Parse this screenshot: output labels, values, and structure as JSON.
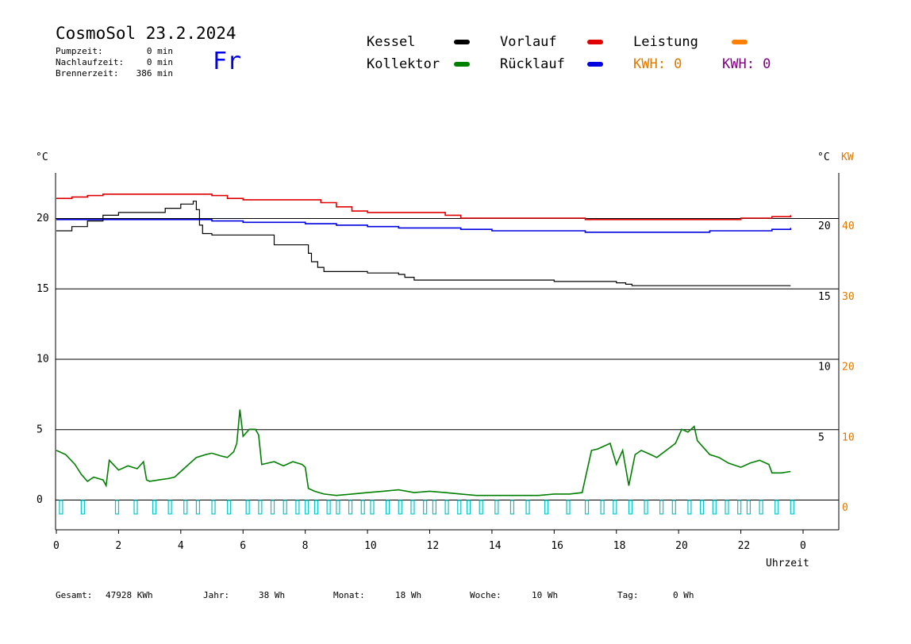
{
  "header": {
    "title": "CosmoSol 23.2.2024",
    "day": "Fr",
    "stats": [
      {
        "label": "Pumpzeit:",
        "value": "0 min"
      },
      {
        "label": "Nachlaufzeit:",
        "value": "0 min"
      },
      {
        "label": "Brennerzeit:",
        "value": "386 min"
      }
    ]
  },
  "legend": {
    "kessel": {
      "label": "Kessel",
      "color": "#000000"
    },
    "kollektor": {
      "label": "Kollektor",
      "color": "#008000"
    },
    "vorlauf": {
      "label": "Vorlauf",
      "color": "#e00000"
    },
    "ruecklauf": {
      "label": "Rücklauf",
      "color": "#0000e0"
    },
    "leistung": {
      "label": "Leistung",
      "color": "#ff8000"
    },
    "kwh_orange": {
      "text": "KWH: 0",
      "color": "#e07800"
    },
    "kwh_purple": {
      "text": "KWH: 0",
      "color": "#800080"
    }
  },
  "axes": {
    "left_unit": "°C",
    "right_unit": "°C",
    "right_unit2": "KW",
    "x_label": "Uhrzeit"
  },
  "footer": {
    "gesamt": {
      "label": "Gesamt:",
      "value": "47928 KWh"
    },
    "jahr": {
      "label": "Jahr:",
      "value": "38 Wh"
    },
    "monat": {
      "label": "Monat:",
      "value": "18 Wh"
    },
    "woche": {
      "label": "Woche:",
      "value": "10 Wh"
    },
    "tag": {
      "label": "Tag:",
      "value": "0 Wh"
    }
  },
  "chart_data": {
    "type": "line",
    "xlabel": "Uhrzeit",
    "ylabel": "°C",
    "xlim": [
      0,
      24
    ],
    "ylim": [
      -2,
      23.5
    ],
    "x_ticks": [
      "0",
      "2",
      "4",
      "6",
      "8",
      "10",
      "12",
      "14",
      "16",
      "18",
      "20",
      "22",
      "0"
    ],
    "y_ticks_left": [
      "0",
      "5",
      "10",
      "15",
      "20"
    ],
    "y_ticks_right": [
      "5",
      "10",
      "15",
      "20"
    ],
    "y_ticks_kw": [
      "0",
      "10",
      "20",
      "30",
      "40"
    ],
    "grid": true,
    "legend_position": "top",
    "series": [
      {
        "name": "Vorlauf",
        "color": "#e00000",
        "x": [
          0,
          0.5,
          1,
          1.5,
          2,
          3,
          4,
          4.5,
          5,
          5.5,
          6,
          7,
          8,
          8.5,
          9,
          9.5,
          10,
          11,
          12,
          12.5,
          13,
          14,
          15,
          16,
          17,
          18,
          19,
          20,
          21,
          22,
          23,
          23.6
        ],
        "y": [
          21.4,
          21.5,
          21.6,
          21.7,
          21.7,
          21.7,
          21.7,
          21.7,
          21.6,
          21.4,
          21.3,
          21.3,
          21.3,
          21.1,
          20.8,
          20.5,
          20.4,
          20.4,
          20.4,
          20.2,
          20.0,
          20.0,
          20.0,
          20.0,
          19.9,
          19.9,
          19.9,
          19.9,
          19.9,
          20.0,
          20.1,
          20.2
        ]
      },
      {
        "name": "Rücklauf",
        "color": "#0000e0",
        "x": [
          0,
          2,
          4,
          4.5,
          5,
          6,
          7,
          8,
          9,
          10,
          11,
          12,
          13,
          14,
          15,
          16,
          17,
          18,
          19,
          20,
          21,
          22,
          23,
          23.6
        ],
        "y": [
          19.9,
          19.9,
          19.9,
          19.9,
          19.8,
          19.7,
          19.7,
          19.6,
          19.5,
          19.4,
          19.3,
          19.3,
          19.2,
          19.1,
          19.1,
          19.1,
          19.0,
          19.0,
          19.0,
          19.0,
          19.1,
          19.1,
          19.2,
          19.3
        ]
      },
      {
        "name": "Kessel",
        "color": "#000000",
        "x": [
          0,
          0.5,
          1,
          1.5,
          2,
          3,
          3.5,
          4,
          4.4,
          4.5,
          4.6,
          4.7,
          5,
          6,
          6.9,
          7.0,
          7.5,
          8.0,
          8.1,
          8.2,
          8.4,
          8.6,
          9,
          10,
          11,
          11.2,
          11.5,
          12,
          13,
          14,
          15,
          16,
          17,
          18,
          18.3,
          18.5,
          19,
          20,
          21,
          22,
          23,
          23.6
        ],
        "y": [
          19.1,
          19.4,
          19.8,
          20.2,
          20.4,
          20.4,
          20.7,
          21.0,
          21.2,
          20.6,
          19.5,
          18.9,
          18.8,
          18.8,
          18.8,
          18.1,
          18.1,
          18.1,
          17.5,
          16.9,
          16.5,
          16.2,
          16.2,
          16.1,
          16.0,
          15.8,
          15.6,
          15.6,
          15.6,
          15.6,
          15.6,
          15.5,
          15.5,
          15.4,
          15.3,
          15.2,
          15.2,
          15.2,
          15.2,
          15.2,
          15.2,
          15.2
        ]
      },
      {
        "name": "Kollektor",
        "color": "#008000",
        "x": [
          0,
          0.3,
          0.6,
          0.8,
          1.0,
          1.2,
          1.5,
          1.6,
          1.7,
          2.0,
          2.3,
          2.6,
          2.8,
          2.9,
          3.0,
          3.3,
          3.6,
          3.8,
          4.0,
          4.3,
          4.5,
          4.8,
          5.0,
          5.3,
          5.5,
          5.7,
          5.8,
          5.9,
          6.0,
          6.2,
          6.4,
          6.5,
          6.6,
          6.8,
          7.0,
          7.3,
          7.6,
          7.9,
          8.0,
          8.1,
          8.3,
          8.6,
          9.0,
          9.5,
          10,
          10.5,
          11,
          11.5,
          12,
          12.5,
          13,
          13.5,
          14,
          14.5,
          15,
          15.5,
          16,
          16.5,
          16.9,
          17.0,
          17.2,
          17.4,
          17.6,
          17.8,
          18.0,
          18.2,
          18.4,
          18.6,
          18.8,
          19.0,
          19.3,
          19.6,
          19.9,
          20.1,
          20.3,
          20.5,
          20.6,
          20.8,
          21.0,
          21.3,
          21.6,
          22.0,
          22.3,
          22.6,
          22.9,
          23.0,
          23.3,
          23.6
        ],
        "y": [
          3.5,
          3.2,
          2.5,
          1.8,
          1.3,
          1.6,
          1.4,
          1.0,
          2.8,
          2.1,
          2.4,
          2.2,
          2.7,
          1.4,
          1.3,
          1.4,
          1.5,
          1.6,
          2.0,
          2.6,
          3.0,
          3.2,
          3.3,
          3.1,
          3.0,
          3.4,
          4.0,
          6.4,
          4.5,
          5.0,
          5.0,
          4.6,
          2.5,
          2.6,
          2.7,
          2.4,
          2.7,
          2.5,
          2.3,
          0.8,
          0.6,
          0.4,
          0.3,
          0.4,
          0.5,
          0.6,
          0.7,
          0.5,
          0.6,
          0.5,
          0.4,
          0.3,
          0.3,
          0.3,
          0.3,
          0.3,
          0.4,
          0.4,
          0.5,
          1.5,
          3.5,
          3.6,
          3.8,
          4.0,
          2.5,
          3.5,
          1.0,
          3.2,
          3.5,
          3.3,
          3.0,
          3.5,
          4.0,
          5.0,
          4.8,
          5.2,
          4.2,
          3.7,
          3.2,
          3.0,
          2.6,
          2.3,
          2.6,
          2.8,
          2.5,
          1.9,
          1.9,
          2.0
        ]
      }
    ]
  }
}
